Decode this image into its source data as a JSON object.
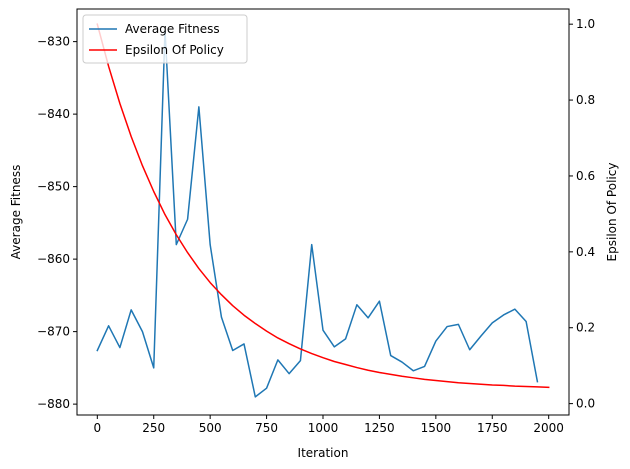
{
  "chart_data": {
    "type": "line",
    "xlabel": "Iteration",
    "ylabel_left": "Average Fitness",
    "ylabel_right": "Epsilon Of Policy",
    "xlim": [
      -90,
      2090
    ],
    "ylim_left": [
      -881.5,
      -825.5
    ],
    "ylim_right": [
      -0.03,
      1.04
    ],
    "x_ticks": [
      0,
      250,
      500,
      750,
      1000,
      1250,
      1500,
      1750,
      2000
    ],
    "y_left_ticks": [
      -880,
      -870,
      -860,
      -850,
      -840,
      -830
    ],
    "y_right_ticks": [
      0.0,
      0.2,
      0.4,
      0.6,
      0.8,
      1.0
    ],
    "x_tick_labels": [
      "0",
      "250",
      "500",
      "750",
      "1000",
      "1250",
      "1500",
      "1750",
      "2000"
    ],
    "y_left_tick_labels": [
      "−880",
      "−870",
      "−860",
      "−850",
      "−840",
      "−830"
    ],
    "y_right_tick_labels": [
      "0.0",
      "0.2",
      "0.4",
      "0.6",
      "0.8",
      "1.0"
    ],
    "grid": false,
    "legend_position": "top-left",
    "series": [
      {
        "name": "Average Fitness",
        "axis": "left",
        "color": "#1f77b4",
        "x": [
          0,
          50,
          100,
          150,
          200,
          250,
          300,
          350,
          400,
          450,
          500,
          550,
          600,
          650,
          700,
          750,
          800,
          850,
          900,
          950,
          1000,
          1050,
          1100,
          1150,
          1200,
          1250,
          1300,
          1350,
          1400,
          1450,
          1500,
          1550,
          1600,
          1650,
          1700,
          1750,
          1800,
          1850,
          1900,
          1950
        ],
        "y": [
          -872.6,
          -869.2,
          -872.2,
          -867.0,
          -870.0,
          -875.0,
          -828.5,
          -858.0,
          -854.5,
          -839.0,
          -858.0,
          -868.0,
          -872.6,
          -871.7,
          -879.0,
          -877.8,
          -873.9,
          -875.8,
          -874.0,
          -858.0,
          -869.8,
          -872.1,
          -871.0,
          -866.3,
          -868.1,
          -865.8,
          -873.3,
          -874.2,
          -875.4,
          -874.8,
          -871.3,
          -869.3,
          -869.0,
          -872.5,
          -870.6,
          -868.8,
          -867.7,
          -866.9,
          -868.6,
          -876.9
        ]
      },
      {
        "name": "Epsilon Of Policy",
        "axis": "right",
        "color": "#ff0000",
        "x": [
          0,
          50,
          100,
          150,
          200,
          250,
          300,
          350,
          400,
          450,
          500,
          550,
          600,
          650,
          700,
          750,
          800,
          850,
          900,
          950,
          1000,
          1050,
          1100,
          1150,
          1200,
          1250,
          1300,
          1350,
          1400,
          1450,
          1500,
          1550,
          1600,
          1650,
          1700,
          1750,
          1800,
          1850,
          1900,
          1950,
          2000
        ],
        "y": [
          1.0,
          0.889,
          0.791,
          0.704,
          0.627,
          0.559,
          0.498,
          0.445,
          0.398,
          0.356,
          0.319,
          0.287,
          0.258,
          0.233,
          0.211,
          0.191,
          0.173,
          0.158,
          0.144,
          0.132,
          0.121,
          0.111,
          0.103,
          0.095,
          0.088,
          0.082,
          0.077,
          0.072,
          0.068,
          0.064,
          0.061,
          0.058,
          0.055,
          0.053,
          0.051,
          0.049,
          0.048,
          0.046,
          0.045,
          0.044,
          0.043
        ]
      }
    ]
  }
}
